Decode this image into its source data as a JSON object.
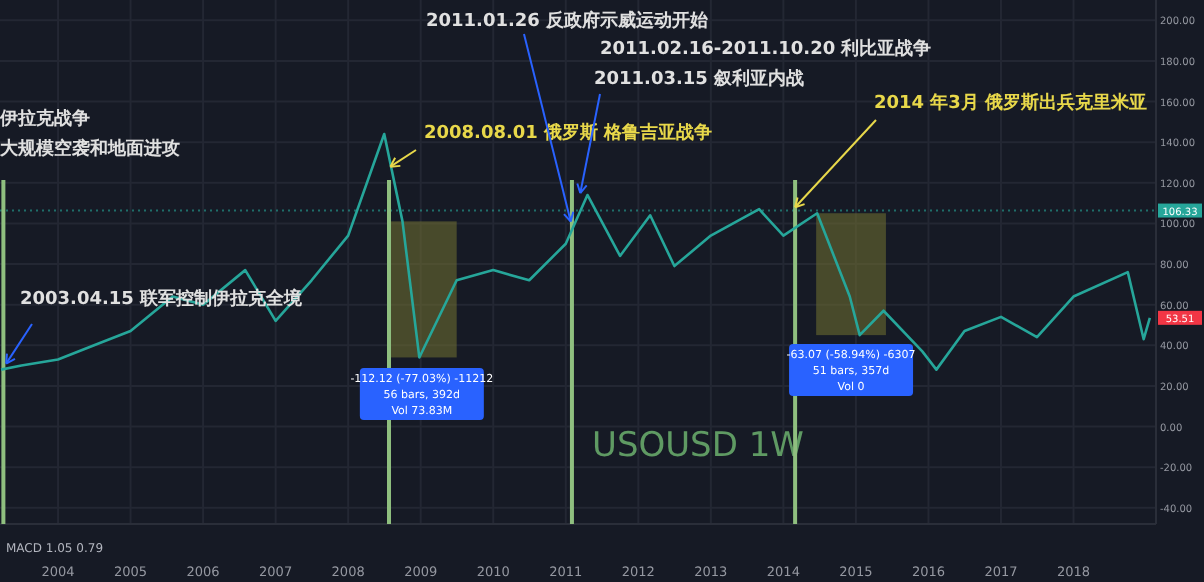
{
  "chart_data": {
    "type": "line",
    "title": "USOUSD 1W",
    "x": [
      "2003-03-20",
      "2003-07-01",
      "2004-01-01",
      "2004-07-01",
      "2005-01-01",
      "2005-08-01",
      "2006-01-01",
      "2006-08-01",
      "2007-01-01",
      "2007-07-01",
      "2008-01-01",
      "2008-07-01",
      "2008-10-01",
      "2008-12-25",
      "2009-07-01",
      "2010-01-01",
      "2010-07-01",
      "2011-01-01",
      "2011-04-20",
      "2011-10-01",
      "2012-03-01",
      "2012-07-01",
      "2013-01-01",
      "2013-09-01",
      "2014-01-01",
      "2014-06-20",
      "2014-12-01",
      "2015-01-20",
      "2015-05-20",
      "2015-12-01",
      "2016-02-10",
      "2016-07-01",
      "2017-01-01",
      "2017-07-01",
      "2018-01-01",
      "2018-10-01",
      "2018-12-20",
      "2019-01-20"
    ],
    "series": [
      {
        "color": "#26a69a",
        "values": [
          28,
          30,
          33,
          40,
          47,
          64,
          60,
          77,
          52,
          72,
          94,
          144,
          101,
          34,
          72,
          77,
          72,
          90,
          114,
          84,
          104,
          79,
          94,
          107,
          94,
          105,
          64,
          45,
          57,
          37,
          28,
          47,
          54,
          44,
          64,
          76,
          43,
          53.51
        ],
        "value_labels": [
          null,
          null,
          null,
          null,
          null,
          null,
          null,
          null,
          null,
          null,
          null,
          null,
          null,
          null,
          null,
          null,
          null,
          null,
          null,
          null,
          null,
          null,
          null,
          null,
          null,
          null,
          null,
          null,
          null,
          null,
          null,
          null,
          null,
          null,
          null,
          null,
          null,
          "53.51"
        ]
      }
    ],
    "xlim": [
      "2003-03-15",
      "2019-02-20"
    ],
    "ylim": [
      -48,
      210
    ],
    "xticks": [
      {
        "value": "2004",
        "label": "2004"
      },
      {
        "value": "2005",
        "label": "2005"
      },
      {
        "value": "2006",
        "label": "2006"
      },
      {
        "value": "2007",
        "label": "2007"
      },
      {
        "value": "2008",
        "label": "2008"
      },
      {
        "value": "2009",
        "label": "2009"
      },
      {
        "value": "2010",
        "label": "2010"
      },
      {
        "value": "2011",
        "label": "2011"
      },
      {
        "value": "2012",
        "label": "2012"
      },
      {
        "value": "2013",
        "label": "2013"
      },
      {
        "value": "2014",
        "label": "2014"
      },
      {
        "value": "2015",
        "label": "2015"
      },
      {
        "value": "2016",
        "label": "2016"
      },
      {
        "value": "2017",
        "label": "2017"
      },
      {
        "value": "2018",
        "label": "2018"
      }
    ],
    "yticks": [
      {
        "value": -40,
        "label": "-40.00"
      },
      {
        "value": -20,
        "label": "-20.00"
      },
      {
        "value": 0,
        "label": "0.00"
      },
      {
        "value": 20,
        "label": "20.00"
      },
      {
        "value": 40,
        "label": "40.00"
      },
      {
        "value": 60,
        "label": "60.00"
      },
      {
        "value": 80,
        "label": "80.00"
      },
      {
        "value": 100,
        "label": "100.00"
      },
      {
        "value": 120,
        "label": "120.00"
      },
      {
        "value": 140,
        "label": "140.00"
      },
      {
        "value": 160,
        "label": "160.00"
      },
      {
        "value": 180,
        "label": "180.00"
      },
      {
        "value": 200,
        "label": "200.00"
      }
    ],
    "grid": true,
    "ref_lines": [
      {
        "axis": "y",
        "value": 106.33,
        "label": "106.33",
        "color": "#26a69a",
        "line_style": "dotted"
      },
      {
        "axis": "x",
        "value": "2003-04-01",
        "color": "#8fbf7f"
      },
      {
        "axis": "x",
        "value": "2008-07-25",
        "color": "#8fbf7f"
      },
      {
        "axis": "x",
        "value": "2011-02-01",
        "color": "#8fbf7f"
      },
      {
        "axis": "x",
        "value": "2014-03-01",
        "color": "#8fbf7f"
      }
    ],
    "bands": [
      {
        "axis": "x",
        "from": "2008-07-15",
        "to": "2009-07-01",
        "color": "#6b6a30"
      },
      {
        "axis": "x",
        "from": "2014-06-15",
        "to": "2015-06-01",
        "color": "#6b6a30"
      }
    ],
    "annotations": [
      "伊拉克战争",
      "大规模空袭和地面进攻",
      {
        "text": "2003.04.15 联军控制伊拉克全境",
        "x": "2003-04-15",
        "y": 28
      },
      {
        "text": "2008.08.01 俄罗斯 格鲁吉亚战争",
        "x": "2008-08-01",
        "y": 125
      },
      {
        "text": "2011.01.26 反政府示威运动开始",
        "x": "2011-01-26",
        "y": 98
      },
      "2011.02.16-2011.10.20 利比亚战争",
      {
        "text": "2011.03.15 叙利亚内战",
        "x": "2011-03-15",
        "y": 112
      },
      {
        "text": "2014 年3月 俄罗斯出兵克里米亚",
        "x": "2014-03-01",
        "y": 105
      },
      "-112.12 (-77.03%) -11212",
      "56 bars, 392d",
      "Vol 73.83M",
      "-63.07 (-58.94%) -6307",
      "51 bars, 357d",
      "Vol 0",
      "MACD 1.05 0.79"
    ]
  }
}
